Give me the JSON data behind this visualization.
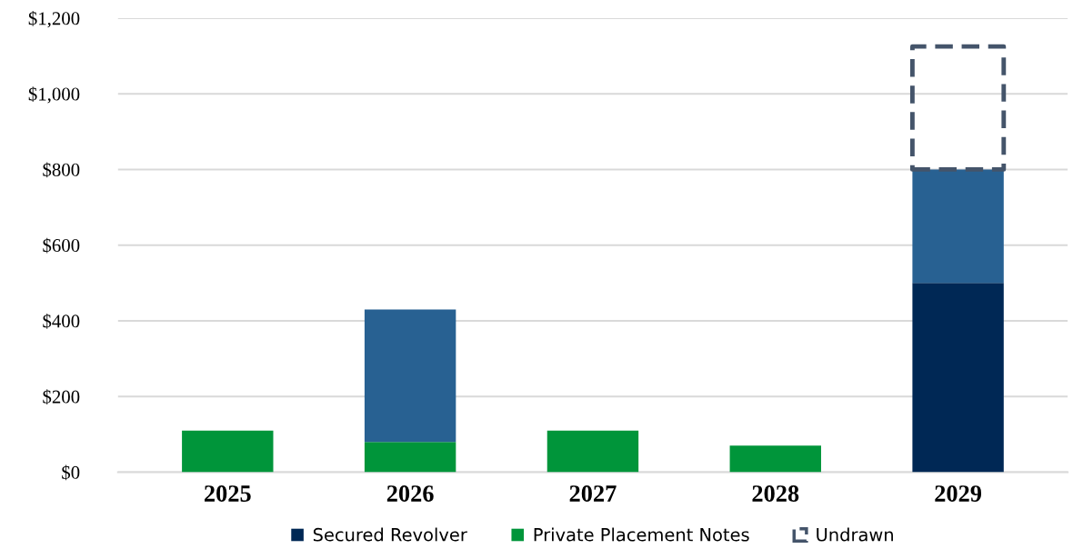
{
  "chart_data": {
    "type": "bar",
    "stacked": true,
    "categories": [
      "2025",
      "2026",
      "2027",
      "2028",
      "2029"
    ],
    "series": [
      {
        "name": "Secured Revolver",
        "color": "#002855",
        "values": [
          null,
          null,
          null,
          null,
          500
        ]
      },
      {
        "name": "Private Placement Notes",
        "color": "#00953a",
        "values": [
          110,
          80,
          110,
          70,
          null
        ]
      },
      {
        "color": "#286192",
        "values": [
          null,
          350,
          null,
          null,
          300
        ]
      },
      {
        "name": "Undrawn",
        "color": "#44546a",
        "line_style": "dashed",
        "values": [
          null,
          null,
          null,
          null,
          325
        ]
      }
    ],
    "ylim": [
      0,
      1200
    ],
    "yticks": [
      {
        "value": 0,
        "label": "$0"
      },
      {
        "value": 200,
        "label": "$200"
      },
      {
        "value": 400,
        "label": "$400"
      },
      {
        "value": 600,
        "label": "$600"
      },
      {
        "value": 800,
        "label": "$800"
      },
      {
        "value": 1000,
        "label": "$1,000"
      },
      {
        "value": 1200,
        "label": "$1,200"
      }
    ],
    "grid": "y",
    "legend": "bottom"
  }
}
